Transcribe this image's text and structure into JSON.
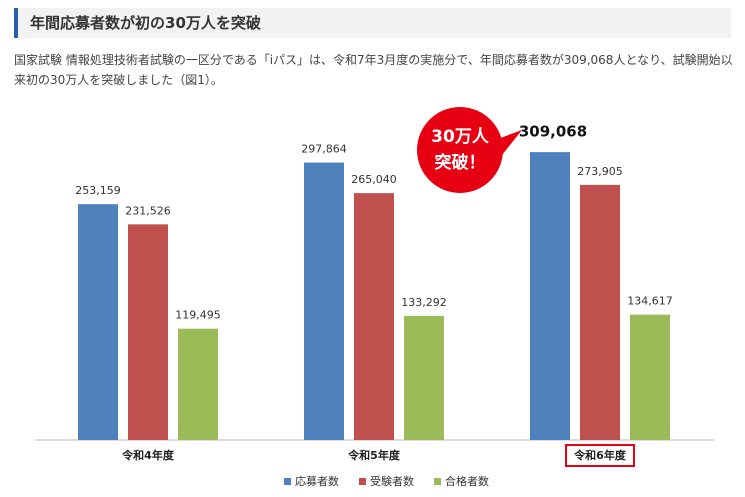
{
  "header": {
    "title": "年間応募者数が初の30万人を突破"
  },
  "paragraph": "国家試験 情報処理技術者試験の一区分である「iパス」は、令和7年3月度の実施分で、年間応募者数が309,068人となり、試験開始以来初の30万人を突破しました（図1）。",
  "chart_data": {
    "type": "bar",
    "categories": [
      "令和4年度",
      "令和5年度",
      "令和6年度"
    ],
    "series": [
      {
        "name": "応募者数",
        "color": "#4f81bd",
        "values": [
          253159,
          297864,
          309068
        ],
        "value_labels": [
          "253,159",
          "297,864",
          "309,068"
        ]
      },
      {
        "name": "受験者数",
        "color": "#c0504d",
        "values": [
          231526,
          265040,
          273905
        ],
        "value_labels": [
          "231,526",
          "265,040",
          "273,905"
        ]
      },
      {
        "name": "合格者数",
        "color": "#9bbb59",
        "values": [
          119495,
          133292,
          134617
        ],
        "value_labels": [
          "119,495",
          "133,292",
          "134,617"
        ]
      }
    ],
    "ylim": [
      0,
      350000
    ],
    "annotation": [
      "30万人",
      "突破！"
    ]
  }
}
